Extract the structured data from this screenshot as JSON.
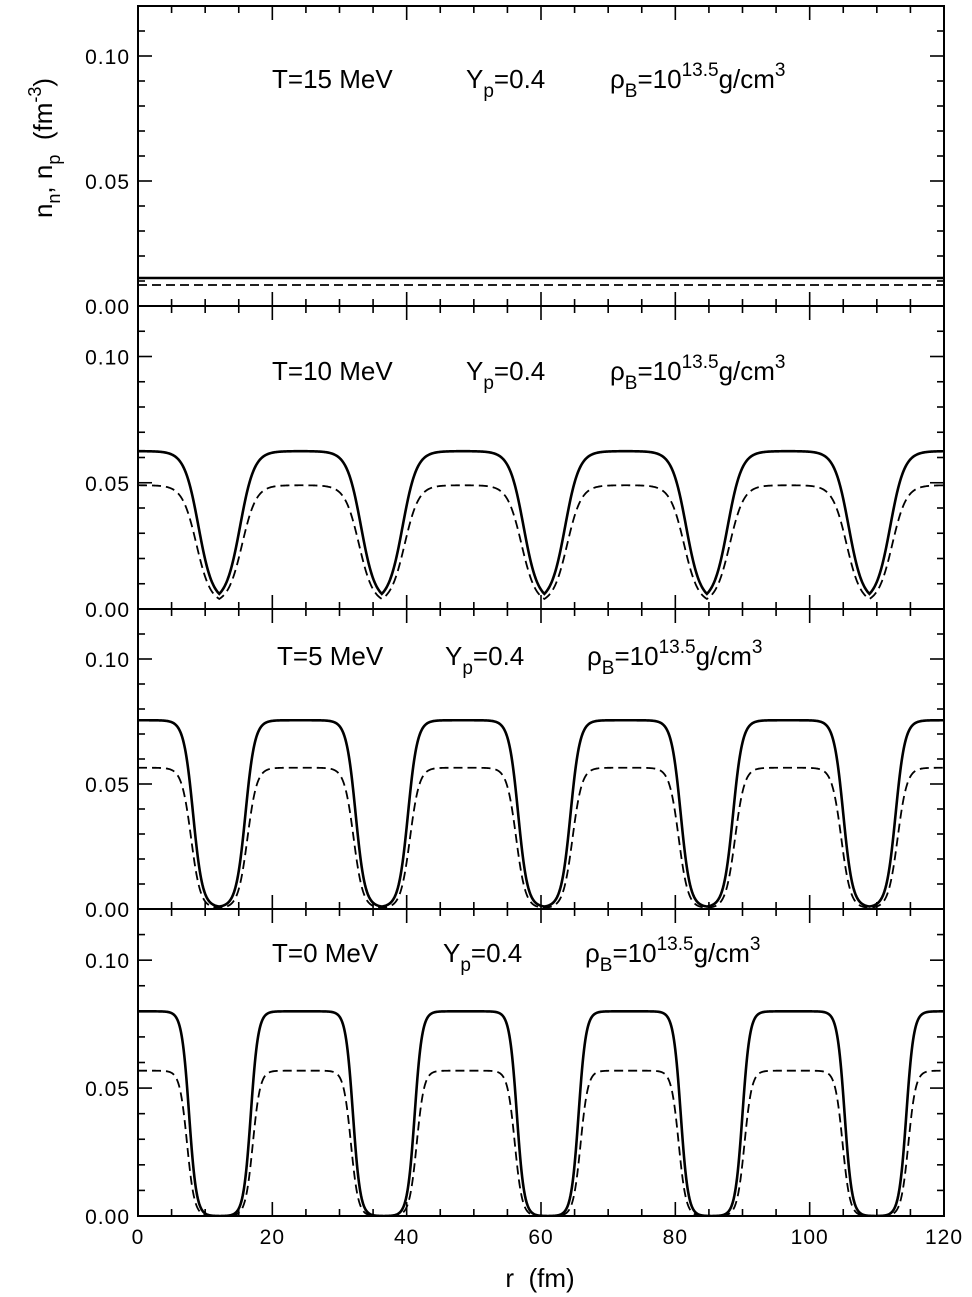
{
  "chart_data": [
    {
      "type": "line",
      "panel": 1,
      "annotation": {
        "T": "T=15 MeV",
        "Yp_base": "Y",
        "Yp_sub": "p",
        "Yp_val": "=0.4",
        "rho_base": "ρ",
        "rho_sub": "B",
        "rho_eq": "=10",
        "rho_exp": "13.5",
        "rho_unit": "g/cm",
        "rho_unit_exp": "3"
      },
      "xlim": [
        0,
        120
      ],
      "ylim": [
        0,
        0.12
      ],
      "yticks": [
        "0.00",
        "0.05",
        "0.10"
      ],
      "series": [
        {
          "style": "solid",
          "kind": "uniform",
          "value": 0.0112
        },
        {
          "style": "dashed",
          "kind": "uniform",
          "value": 0.0084
        }
      ]
    },
    {
      "type": "line",
      "panel": 2,
      "annotation": {
        "T": "T=10 MeV",
        "Yp_base": "Y",
        "Yp_sub": "p",
        "Yp_val": "=0.4",
        "rho_base": "ρ",
        "rho_sub": "B",
        "rho_eq": "=10",
        "rho_exp": "13.5",
        "rho_unit": "g/cm",
        "rho_unit_exp": "3"
      },
      "xlim": [
        0,
        120
      ],
      "ylim": [
        0,
        0.12
      ],
      "yticks": [
        "0.00",
        "0.05",
        "0.10"
      ],
      "series": [
        {
          "style": "solid",
          "kind": "periodic",
          "period": 24.2,
          "max": 0.0625,
          "min": 0.006,
          "half_width": 9.0,
          "diffuseness": 1.05
        },
        {
          "style": "dashed",
          "kind": "periodic",
          "period": 24.2,
          "max": 0.049,
          "min": 0.004,
          "half_width": 8.7,
          "diffuseness": 1.05
        }
      ]
    },
    {
      "type": "line",
      "panel": 3,
      "annotation": {
        "T": "T=5 MeV",
        "Yp_base": "Y",
        "Yp_sub": "p",
        "Yp_val": "=0.4",
        "rho_base": "ρ",
        "rho_sub": "B",
        "rho_eq": "=10",
        "rho_exp": "13.5",
        "rho_unit": "g/cm",
        "rho_unit_exp": "3"
      },
      "xlim": [
        0,
        120
      ],
      "ylim": [
        0,
        0.12
      ],
      "yticks": [
        "0.00",
        "0.05",
        "0.10"
      ],
      "series": [
        {
          "style": "solid",
          "kind": "periodic",
          "period": 24.2,
          "max": 0.0755,
          "min": 0.001,
          "half_width": 8.2,
          "diffuseness": 0.7
        },
        {
          "style": "dashed",
          "kind": "periodic",
          "period": 24.2,
          "max": 0.0565,
          "min": 0.0005,
          "half_width": 7.9,
          "diffuseness": 0.7
        }
      ]
    },
    {
      "type": "line",
      "panel": 4,
      "annotation": {
        "T": "T=0 MeV",
        "Yp_base": "Y",
        "Yp_sub": "p",
        "Yp_val": "=0.4",
        "rho_base": "ρ",
        "rho_sub": "B",
        "rho_eq": "=10",
        "rho_exp": "13.5",
        "rho_unit": "g/cm",
        "rho_unit_exp": "3"
      },
      "xlim": [
        0,
        120
      ],
      "ylim": [
        0,
        0.12
      ],
      "yticks": [
        "0.00",
        "0.05",
        "0.10"
      ],
      "xticks": [
        "0",
        "20",
        "40",
        "60",
        "80",
        "100",
        "120"
      ],
      "series": [
        {
          "style": "solid",
          "kind": "periodic",
          "period": 24.4,
          "max": 0.08,
          "min": 0.0,
          "half_width": 7.6,
          "diffuseness": 0.55
        },
        {
          "style": "dashed",
          "kind": "periodic",
          "period": 24.4,
          "max": 0.0568,
          "min": 0.0,
          "half_width": 7.3,
          "diffuseness": 0.55
        }
      ]
    }
  ],
  "axes": {
    "ylabel_parts": [
      "n",
      "n",
      ", n",
      "p",
      "  (fm",
      "-3",
      ")"
    ],
    "xlabel": "r  (fm)"
  },
  "colors": {
    "line": "#000000",
    "background": "#ffffff"
  }
}
